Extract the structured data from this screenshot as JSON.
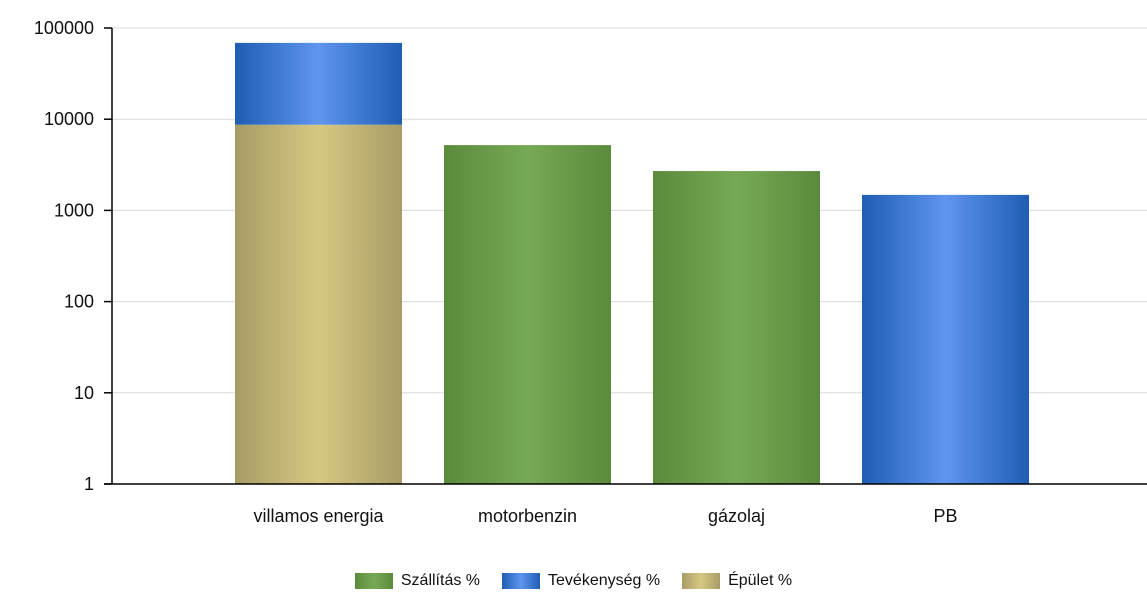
{
  "chart_data": {
    "type": "bar",
    "stacked": true,
    "y_scale": "log",
    "ylim": [
      1,
      100000
    ],
    "y_ticks": [
      "1",
      "10",
      "100",
      "1000",
      "10000",
      "100000"
    ],
    "grid": "horizontal",
    "legend_position": "bottom",
    "categories": [
      "villamos energia",
      "motorbenzin",
      "gázolaj",
      "PB"
    ],
    "series": [
      {
        "name": "Szállítás %",
        "color": "#6a9a4a",
        "values": [
          0,
          5200,
          2700,
          0
        ]
      },
      {
        "name": "Tevékenység %",
        "color": "#3a78d0",
        "values": [
          60000,
          0,
          0,
          1480
        ]
      },
      {
        "name": "Épület %",
        "color": "#c9bb78",
        "values": [
          8700,
          0,
          0,
          0
        ]
      }
    ],
    "stack_order": [
      "Épület %",
      "Szállítás %",
      "Tevékenység %"
    ]
  }
}
